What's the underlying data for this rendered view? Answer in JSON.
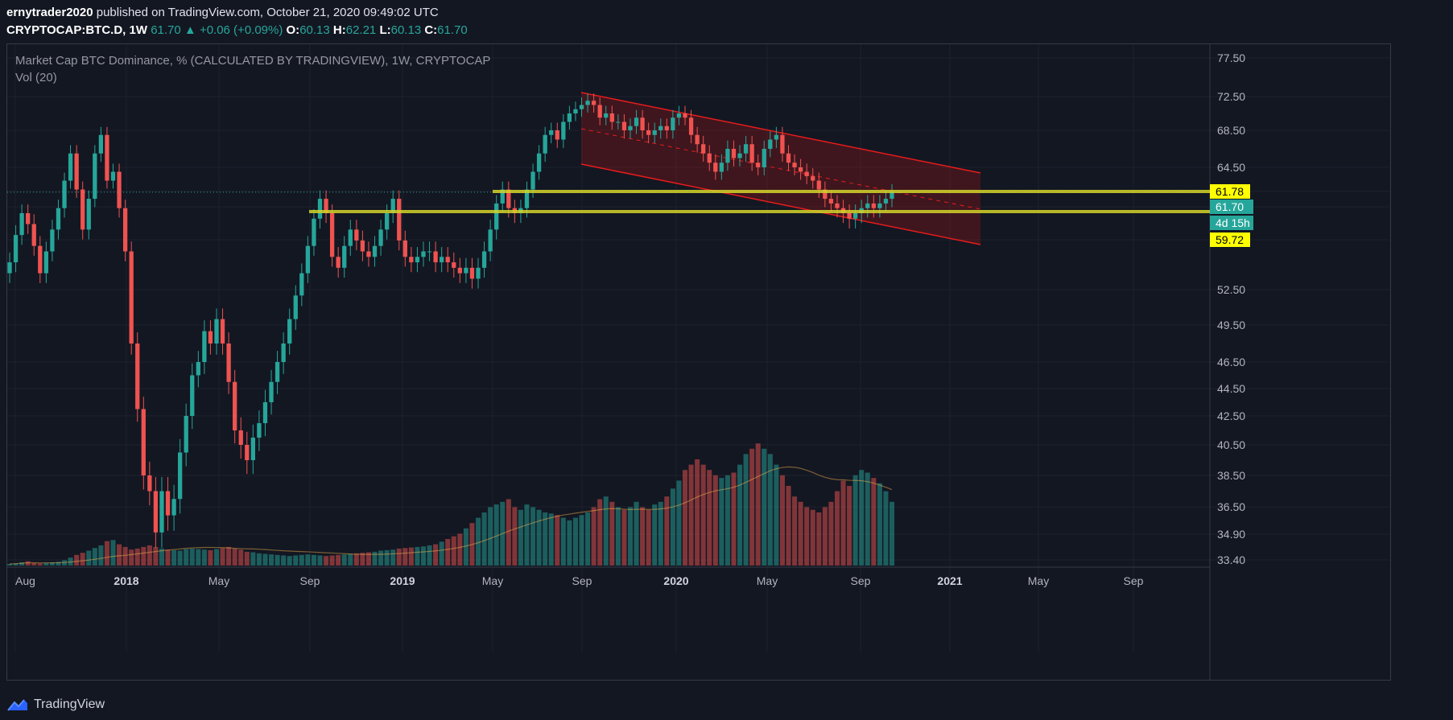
{
  "header": {
    "author": "ernytrader2020",
    "published": " published on TradingView.com, October 21, 2020 09:49:02 UTC",
    "symbol": "CRYPTOCAP:BTC.D, 1W",
    "last": "61.70",
    "change": "+0.06 (+0.09%)",
    "open_label": "O:",
    "open": "60.13",
    "high_label": "H:",
    "high": "62.21",
    "low_label": "L:",
    "low": "60.13",
    "close_label": "C:",
    "close": "61.70"
  },
  "indicator_title": "Market Cap BTC Dominance, % (CALCULATED BY TRADINGVIEW), 1W, CRYPTOCAP",
  "volume_label": "Vol (20)",
  "footer": {
    "brand": "TradingView"
  },
  "colors": {
    "background": "#131722",
    "up": "#26a69a",
    "down": "#ef5350",
    "support_line": "#d4d42a",
    "channel": "#e81b1b",
    "grid": "#1e222d"
  },
  "chart_data": {
    "type": "candlestick",
    "y_ticks": [
      "77.50",
      "72.50",
      "68.50",
      "64.50",
      "61.78",
      "61.70",
      "59.72",
      "52.50",
      "49.50",
      "46.50",
      "44.50",
      "42.50",
      "40.50",
      "38.50",
      "36.50",
      "34.90",
      "33.40"
    ],
    "x_ticks": [
      "Aug",
      "2018",
      "May",
      "Sep",
      "2019",
      "May",
      "Sep",
      "2020",
      "May",
      "Sep",
      "2021",
      "May",
      "Sep"
    ],
    "price_tags": [
      {
        "value": "61.78",
        "style": "yellow"
      },
      {
        "value": "61.70",
        "style": "teal"
      },
      {
        "value": "4d 15h",
        "style": "teal"
      },
      {
        "value": "59.72",
        "style": "yellow"
      }
    ],
    "horizontal_levels": [
      61.78,
      59.72
    ],
    "close_series": [
      55.0,
      57.5,
      59.5,
      58.5,
      56.5,
      54.0,
      56.0,
      58.0,
      60.0,
      63.0,
      66.0,
      62.0,
      58.0,
      61.0,
      66.0,
      68.0,
      63.0,
      64.0,
      60.0,
      56.0,
      48.0,
      43.0,
      38.5,
      37.5,
      35.0,
      37.5,
      36.0,
      37.0,
      40.0,
      42.5,
      45.5,
      46.5,
      49.0,
      48.0,
      50.0,
      48.0,
      45.0,
      41.5,
      40.5,
      39.5,
      41.0,
      42.0,
      43.5,
      45.0,
      46.5,
      48.0,
      50.0,
      52.0,
      54.0,
      56.5,
      59.0,
      61.0,
      59.5,
      55.5,
      54.5,
      56.5,
      58.0,
      57.0,
      56.0,
      55.5,
      56.5,
      58.0,
      59.5,
      61.0,
      57.0,
      55.5,
      55.0,
      55.5,
      56.0,
      56.0,
      55.0,
      55.5,
      55.0,
      54.5,
      54.0,
      54.5,
      53.5,
      54.5,
      56.0,
      58.0,
      60.5,
      62.0,
      60.0,
      59.5,
      60.0,
      62.0,
      64.0,
      66.0,
      68.0,
      68.5,
      67.5,
      69.5,
      70.5,
      71.0,
      71.5,
      72.0,
      71.5,
      70.0,
      70.5,
      69.5,
      69.5,
      68.5,
      69.0,
      70.0,
      68.5,
      68.0,
      68.5,
      69.0,
      68.5,
      70.0,
      70.5,
      70.0,
      68.0,
      67.0,
      66.0,
      65.0,
      64.0,
      65.0,
      66.5,
      65.5,
      66.0,
      67.0,
      65.0,
      64.5,
      66.5,
      67.5,
      68.0,
      66.0,
      65.0,
      64.5,
      64.0,
      63.5,
      63.0,
      62.0,
      61.0,
      60.5,
      60.0,
      59.5,
      59.0,
      59.5,
      60.0,
      60.5,
      60.0,
      60.5,
      61.0,
      61.7
    ],
    "volume_series": [
      0.3,
      0.4,
      0.6,
      0.8,
      0.5,
      0.4,
      0.5,
      0.6,
      0.7,
      1.0,
      1.5,
      2.0,
      2.4,
      2.8,
      3.3,
      3.8,
      4.6,
      4.8,
      4.0,
      3.5,
      3.0,
      3.2,
      3.5,
      3.8,
      3.5,
      3.2,
      3.0,
      2.9,
      2.8,
      3.1,
      3.2,
      3.1,
      3.0,
      2.9,
      3.1,
      3.3,
      3.5,
      3.2,
      3.0,
      2.6,
      2.5,
      2.3,
      2.2,
      2.1,
      2.0,
      1.9,
      1.8,
      1.9,
      2.0,
      2.1,
      2.0,
      1.9,
      1.8,
      1.9,
      2.0,
      2.1,
      2.2,
      2.3,
      2.4,
      2.5,
      2.6,
      2.8,
      2.9,
      3.0,
      3.2,
      3.3,
      3.4,
      3.5,
      3.6,
      3.8,
      4.0,
      4.5,
      5.0,
      5.5,
      6.0,
      7.0,
      8.0,
      9.0,
      10.0,
      11.0,
      11.5,
      12.0,
      12.5,
      11.0,
      10.5,
      11.5,
      11.0,
      10.5,
      10.0,
      9.8,
      9.5,
      9.0,
      8.5,
      9.0,
      9.5,
      10.0,
      11.0,
      12.5,
      13.0,
      12.0,
      11.0,
      10.5,
      11.0,
      12.0,
      11.0,
      10.5,
      11.5,
      12.0,
      13.0,
      14.5,
      16.0,
      18.0,
      19.0,
      20.0,
      19.0,
      18.0,
      17.0,
      16.5,
      17.0,
      17.5,
      19.0,
      21.0,
      22.0,
      23.0,
      22.0,
      21.0,
      19.0,
      17.0,
      15.0,
      13.0,
      12.0,
      11.0,
      10.5,
      10.0,
      11.0,
      12.0,
      14.0,
      16.0,
      15.0,
      17.0,
      18.0,
      17.5,
      16.5,
      15.5,
      14.0,
      12.0
    ]
  }
}
